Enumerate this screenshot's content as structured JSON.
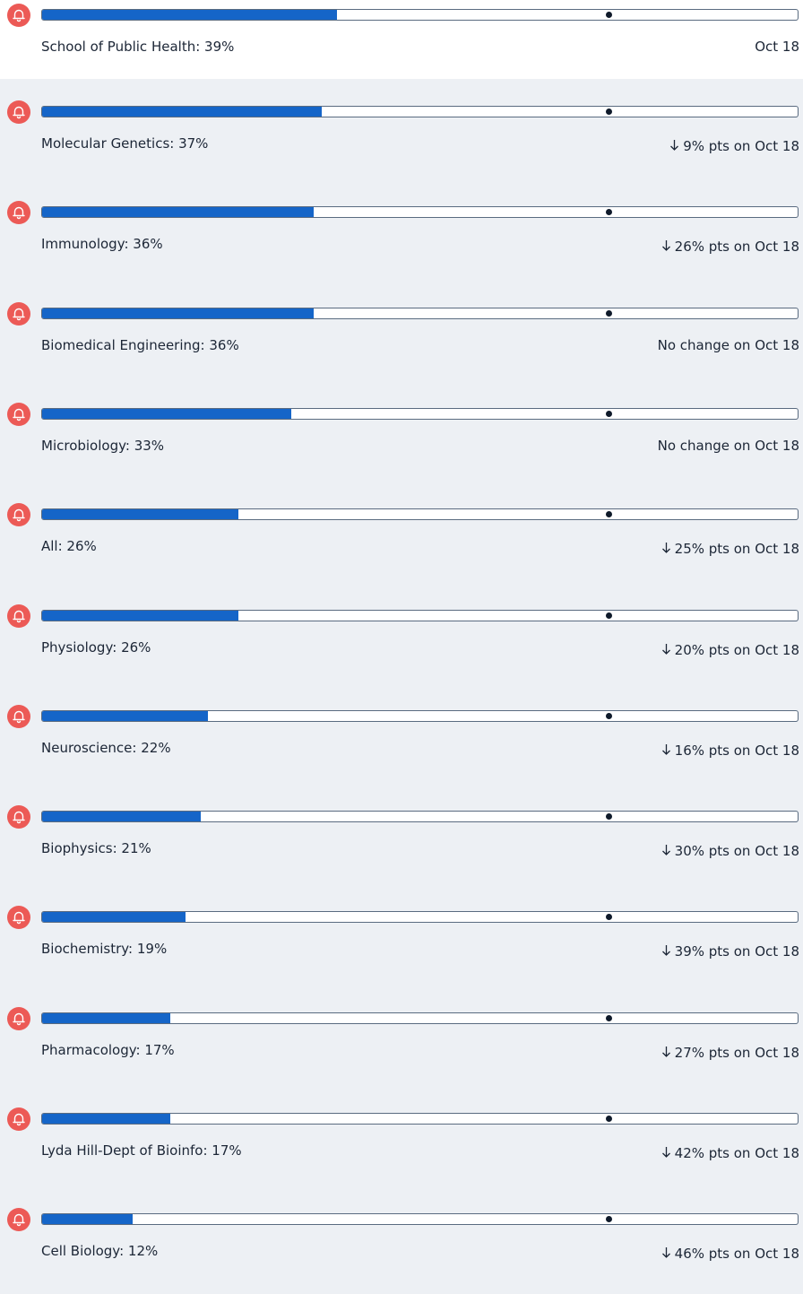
{
  "target": 75,
  "rows": [
    {
      "label": "School of Public Health: 39%",
      "value": 39,
      "change": "Oct 18"
    },
    {
      "label": "Molecular Genetics: 37%",
      "value": 37,
      "change": "9% pts on Oct 18",
      "direction": "down"
    },
    {
      "label": "Immunology: 36%",
      "value": 36,
      "change": "26% pts on Oct 18",
      "direction": "down"
    },
    {
      "label": "Biomedical Engineering: 36%",
      "value": 36,
      "change": "No change on Oct 18"
    },
    {
      "label": "Microbiology: 33%",
      "value": 33,
      "change": "No change on Oct 18"
    },
    {
      "label": "All: 26%",
      "value": 26,
      "change": "25% pts on Oct 18",
      "direction": "down"
    },
    {
      "label": "Physiology: 26%",
      "value": 26,
      "change": "20% pts on Oct 18",
      "direction": "down"
    },
    {
      "label": "Neuroscience: 22%",
      "value": 22,
      "change": "16% pts on Oct 18",
      "direction": "down"
    },
    {
      "label": "Biophysics: 21%",
      "value": 21,
      "change": "30% pts on Oct 18",
      "direction": "down"
    },
    {
      "label": "Biochemistry: 19%",
      "value": 19,
      "change": "39% pts on Oct 18",
      "direction": "down"
    },
    {
      "label": "Pharmacology: 17%",
      "value": 17,
      "change": "27% pts on Oct 18",
      "direction": "down"
    },
    {
      "label": "Lyda Hill-Dept of Bioinfo: 17%",
      "value": 17,
      "change": "42% pts on Oct 18",
      "direction": "down"
    },
    {
      "label": "Cell Biology: 12%",
      "value": 12,
      "change": "46% pts on Oct 18",
      "direction": "down"
    }
  ]
}
